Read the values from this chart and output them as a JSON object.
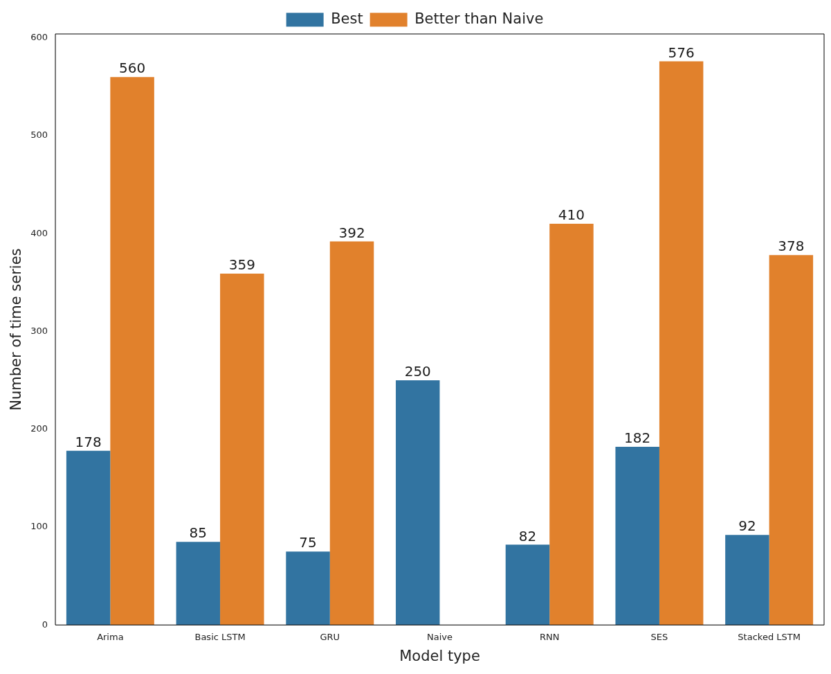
{
  "chart_data": {
    "type": "bar",
    "xlabel": "Model type",
    "ylabel": "Number of time series",
    "categories": [
      "Arima",
      "Basic LSTM",
      "GRU",
      "Naive",
      "RNN",
      "SES",
      "Stacked LSTM"
    ],
    "series": [
      {
        "name": "Best",
        "color": "#3274a1",
        "values": [
          178,
          85,
          75,
          250,
          82,
          182,
          92
        ]
      },
      {
        "name": "Better than Naive",
        "color": "#e1812c",
        "values": [
          560,
          359,
          392,
          null,
          410,
          576,
          378
        ]
      }
    ],
    "ylim": [
      0,
      604
    ],
    "yticks": [
      0,
      100,
      200,
      300,
      400,
      500,
      600
    ],
    "grid": false,
    "legend": "top",
    "data_labels": true
  }
}
